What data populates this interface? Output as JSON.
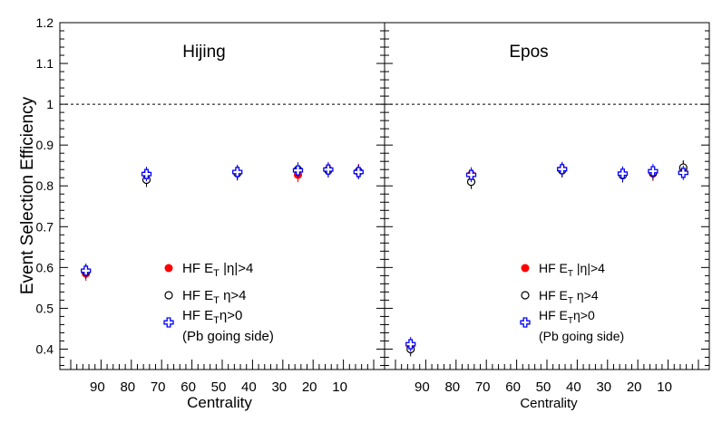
{
  "chart_data": {
    "type": "scatter",
    "ylabel": "Event Selection Efficiency",
    "xlabel": "Centrality",
    "ylim": [
      0.35,
      1.2
    ],
    "xlim": [
      100,
      0
    ],
    "x_reversed": true,
    "yticks": [
      0.4,
      0.5,
      0.6,
      0.7,
      0.8,
      0.9,
      1,
      1.1,
      1.2
    ],
    "xticks": [
      90,
      80,
      70,
      60,
      50,
      40,
      30,
      20,
      10
    ],
    "reference_line": 1,
    "legend_placement": "lower-center",
    "panels": [
      {
        "title": "Hijing",
        "series": [
          {
            "name": "HF E_T |η|>4",
            "label_main": "HF E",
            "label_sub": "T",
            "label_tail": " |η|>4",
            "marker": "filled-circle",
            "color": "#ff0000",
            "x": [
              95,
              75,
              45,
              25,
              15,
              5
            ],
            "y": [
              0.585,
              0.828,
              0.832,
              0.827,
              0.84,
              0.836
            ]
          },
          {
            "name": "HF E_T η>4",
            "label_main": "HF E",
            "label_sub": "T",
            "label_tail": "  η>4",
            "marker": "open-circle",
            "color": "#000000",
            "x": [
              95,
              75,
              45,
              25,
              15,
              5
            ],
            "y": [
              0.59,
              0.815,
              0.831,
              0.84,
              0.838,
              0.835
            ]
          },
          {
            "name": "HF E_Tη>0 (Pb going side)",
            "label_main": "HF E",
            "label_sub": "T",
            "label_tail": "η>0",
            "label_line2": "(Pb going side)",
            "marker": "open-cross",
            "color": "#0000ff",
            "x": [
              95,
              75,
              45,
              25,
              15,
              5
            ],
            "y": [
              0.592,
              0.829,
              0.834,
              0.838,
              0.84,
              0.834
            ]
          }
        ]
      },
      {
        "title": "Epos",
        "series": [
          {
            "name": "HF E_T |η|>4",
            "label_main": "HF E",
            "label_sub": "T",
            "label_tail": " |η|>4",
            "marker": "filled-circle",
            "color": "#ff0000",
            "x": [
              95,
              75,
              45,
              25,
              15,
              5
            ],
            "y": [
              0.405,
              0.828,
              0.84,
              0.828,
              0.83,
              0.842
            ]
          },
          {
            "name": "HF E_T η>4",
            "label_main": "HF E",
            "label_sub": "T",
            "label_tail": "  η>4",
            "marker": "open-circle",
            "color": "#000000",
            "x": [
              95,
              75,
              45,
              25,
              15,
              5
            ],
            "y": [
              0.4,
              0.81,
              0.838,
              0.826,
              0.832,
              0.845
            ]
          },
          {
            "name": "HF E_Tη>0 (Pb going side)",
            "label_main": "HF E",
            "label_sub": "T",
            "label_tail": "η>0",
            "label_line2": "(Pb going side)",
            "marker": "open-cross",
            "color": "#0000ff",
            "x": [
              95,
              75,
              45,
              25,
              15,
              5
            ],
            "y": [
              0.412,
              0.827,
              0.841,
              0.83,
              0.836,
              0.832
            ]
          }
        ]
      }
    ]
  }
}
